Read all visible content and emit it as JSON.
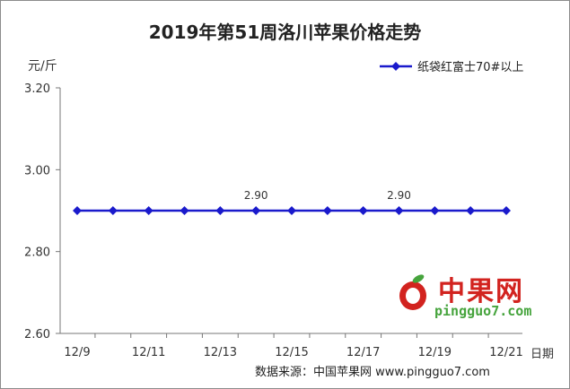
{
  "chart_data": {
    "type": "line",
    "title": "2019年第51周洛川苹果价格走势",
    "ylabel": "元/斤",
    "xlabel": "日期",
    "ylim": [
      2.6,
      3.2
    ],
    "yticks": [
      "3.20",
      "3.00",
      "2.80",
      "2.60"
    ],
    "ytick_values": [
      3.2,
      3.0,
      2.8,
      2.6
    ],
    "categories": [
      "12/9",
      "12/10",
      "12/11",
      "12/12",
      "12/13",
      "12/14",
      "12/15",
      "12/16",
      "12/17",
      "12/18",
      "12/19",
      "12/20",
      "12/21"
    ],
    "xtick_labels": [
      "12/9",
      "12/11",
      "12/13",
      "12/15",
      "12/17",
      "12/19",
      "12/21"
    ],
    "series": [
      {
        "name": "纸袋红富士70#以上",
        "color": "#1a1acc",
        "values": [
          2.9,
          2.9,
          2.9,
          2.9,
          2.9,
          2.9,
          2.9,
          2.9,
          2.9,
          2.9,
          2.9,
          2.9,
          2.9
        ]
      }
    ],
    "data_labels": [
      {
        "category": "12/14",
        "text": "2.90"
      },
      {
        "category": "12/18",
        "text": "2.90"
      }
    ],
    "legend_position": "top-right",
    "grid": false
  },
  "source": "数据来源：中国苹果网 www.pingguo7.com",
  "watermark": {
    "name": "中果网",
    "url": "pingguo7.com"
  }
}
